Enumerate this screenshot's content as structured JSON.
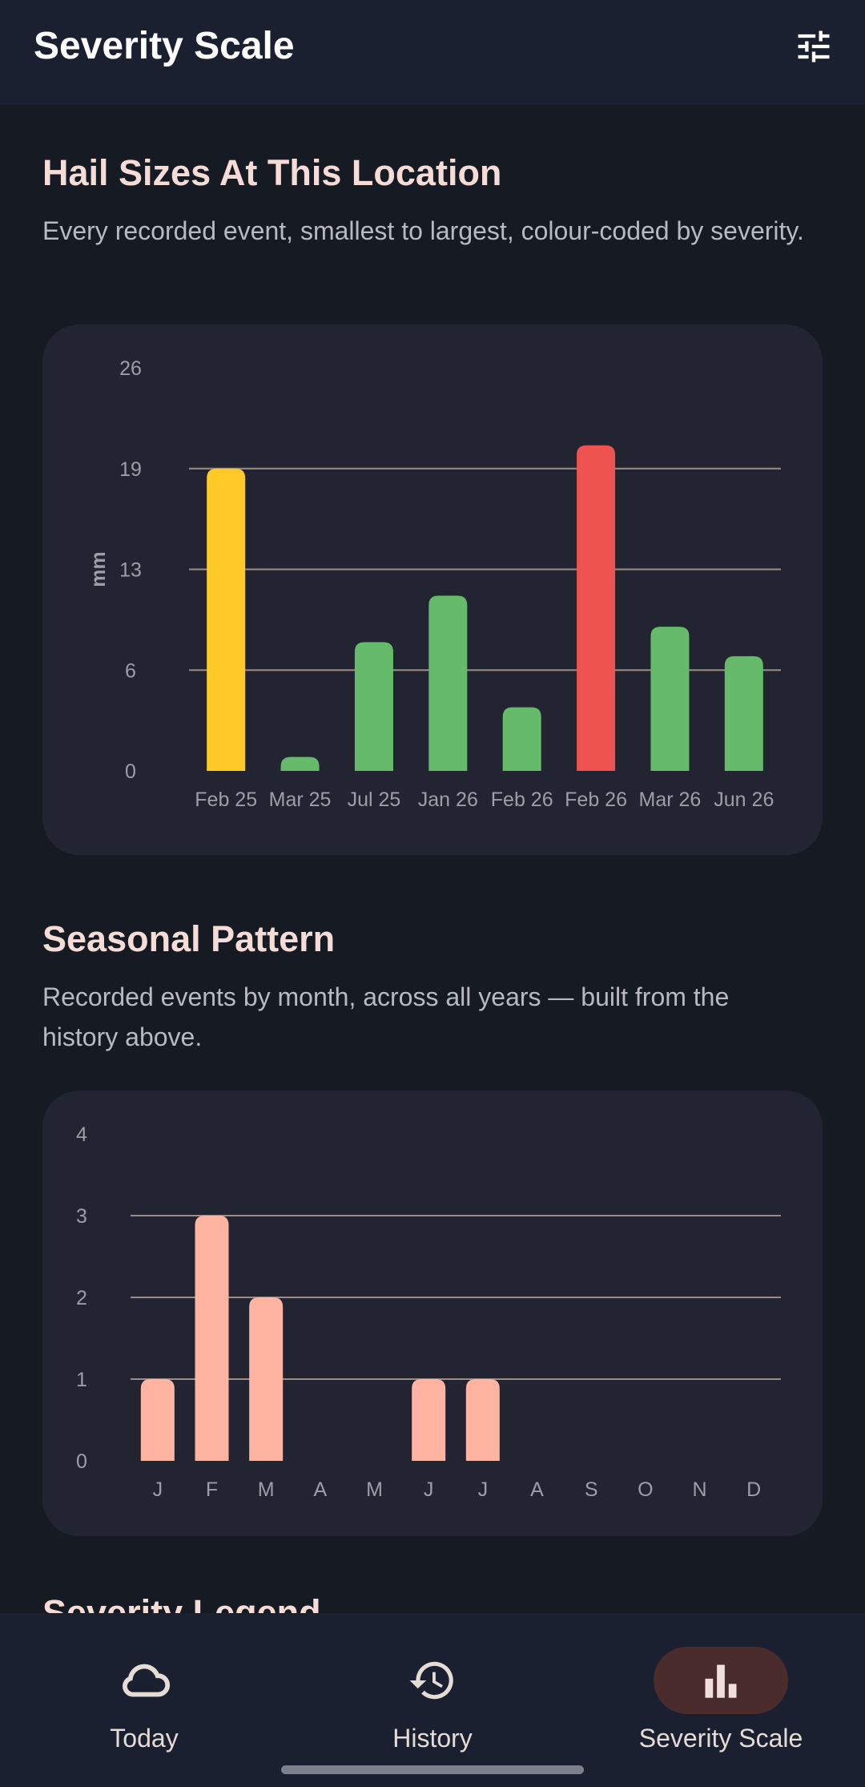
{
  "appbar": {
    "title": "Severity Scale",
    "action_icon": "tune-icon"
  },
  "section1": {
    "title": "Hail Sizes At This Location",
    "subtitle": "Every recorded event, smallest to largest, colour-coded by severity."
  },
  "section2": {
    "title": "Seasonal Pattern",
    "subtitle": "Recorded events by month, across all years — built from the history above."
  },
  "section3_peek": {
    "title": "Severity Legend"
  },
  "colors": {
    "yellow": "#ffca28",
    "green": "#66bb6a",
    "red": "#ef5350",
    "salmon": "#ffb4a2",
    "grid": "#9e8c88",
    "card": "#222531",
    "nav_active": "#4a2c2d"
  },
  "chart_data": [
    {
      "type": "bar",
      "ylabel": "mm",
      "yticks": [
        "0",
        "6",
        "13",
        "19",
        "26"
      ],
      "ylim": [
        0,
        26
      ],
      "grid": true,
      "categories": [
        "Feb 25",
        "Mar 25",
        "Jul 25",
        "Jan 26",
        "Feb 26",
        "Feb 26",
        "Mar 26",
        "Jun 26"
      ],
      "values": [
        19.5,
        0.9,
        8.3,
        11.3,
        4.1,
        21.0,
        9.3,
        7.4
      ],
      "bar_colors": [
        "#ffca28",
        "#66bb6a",
        "#66bb6a",
        "#66bb6a",
        "#66bb6a",
        "#ef5350",
        "#66bb6a",
        "#66bb6a"
      ]
    },
    {
      "type": "bar",
      "yticks": [
        "0",
        "1",
        "2",
        "3",
        "4"
      ],
      "ylim": [
        0,
        4
      ],
      "grid": true,
      "categories": [
        "J",
        "F",
        "M",
        "A",
        "M",
        "J",
        "J",
        "A",
        "S",
        "O",
        "N",
        "D"
      ],
      "values": [
        1,
        3,
        2,
        0,
        0,
        1,
        1,
        0,
        0,
        0,
        0,
        0
      ],
      "bar_color": "#ffb4a2"
    }
  ],
  "nav": {
    "items": [
      {
        "label": "Today",
        "icon": "cloud-icon",
        "active": false
      },
      {
        "label": "History",
        "icon": "history-icon",
        "active": false
      },
      {
        "label": "Severity Scale",
        "icon": "bar-chart-icon",
        "active": true
      }
    ]
  }
}
